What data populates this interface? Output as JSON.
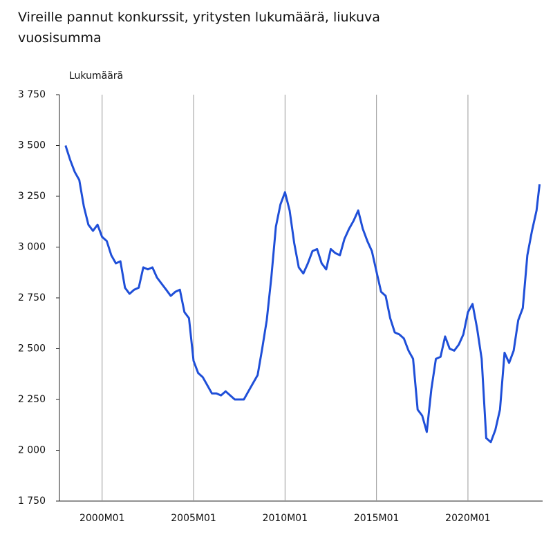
{
  "chart_data": {
    "type": "line",
    "title": "Vireille pannut konkurssit, yritysten lukumäärä, liukuva vuosisumma",
    "y_label": "Lukumäärä",
    "x": [
      "1998M01",
      "1998M04",
      "1998M07",
      "1998M10",
      "1999M01",
      "1999M04",
      "1999M07",
      "1999M10",
      "2000M01",
      "2000M04",
      "2000M07",
      "2000M10",
      "2001M01",
      "2001M04",
      "2001M07",
      "2001M10",
      "2002M01",
      "2002M04",
      "2002M07",
      "2002M10",
      "2003M01",
      "2003M04",
      "2003M07",
      "2003M10",
      "2004M01",
      "2004M04",
      "2004M07",
      "2004M10",
      "2005M01",
      "2005M04",
      "2005M07",
      "2005M10",
      "2006M01",
      "2006M04",
      "2006M07",
      "2006M10",
      "2007M01",
      "2007M04",
      "2007M07",
      "2007M10",
      "2008M01",
      "2008M04",
      "2008M07",
      "2008M10",
      "2009M01",
      "2009M04",
      "2009M07",
      "2009M10",
      "2010M01",
      "2010M04",
      "2010M07",
      "2010M10",
      "2011M01",
      "2011M04",
      "2011M07",
      "2011M10",
      "2012M01",
      "2012M04",
      "2012M07",
      "2012M10",
      "2013M01",
      "2013M04",
      "2013M07",
      "2013M10",
      "2014M01",
      "2014M04",
      "2014M07",
      "2014M10",
      "2015M01",
      "2015M04",
      "2015M07",
      "2015M10",
      "2016M01",
      "2016M04",
      "2016M07",
      "2016M10",
      "2017M01",
      "2017M04",
      "2017M07",
      "2017M10",
      "2018M01",
      "2018M04",
      "2018M07",
      "2018M10",
      "2019M01",
      "2019M04",
      "2019M07",
      "2019M10",
      "2020M01",
      "2020M04",
      "2020M07",
      "2020M10",
      "2021M01",
      "2021M04",
      "2021M07",
      "2021M10",
      "2022M01",
      "2022M04",
      "2022M07",
      "2022M10",
      "2023M01",
      "2023M04",
      "2023M07",
      "2023M10",
      "2023M12"
    ],
    "series": [
      {
        "name": "Konkurssit",
        "color": "#1f4fd8",
        "values": [
          3500,
          3430,
          3370,
          3330,
          3200,
          3110,
          3080,
          3110,
          3050,
          3030,
          2960,
          2920,
          2930,
          2800,
          2770,
          2790,
          2800,
          2900,
          2890,
          2900,
          2850,
          2820,
          2790,
          2760,
          2780,
          2790,
          2680,
          2650,
          2440,
          2380,
          2360,
          2320,
          2280,
          2280,
          2270,
          2290,
          2270,
          2250,
          2250,
          2250,
          2290,
          2330,
          2370,
          2500,
          2640,
          2850,
          3100,
          3210,
          3270,
          3180,
          3020,
          2900,
          2870,
          2920,
          2980,
          2990,
          2920,
          2890,
          2990,
          2970,
          2960,
          3040,
          3090,
          3130,
          3180,
          3090,
          3030,
          2980,
          2880,
          2780,
          2760,
          2650,
          2580,
          2570,
          2550,
          2490,
          2450,
          2200,
          2170,
          2090,
          2300,
          2450,
          2460,
          2560,
          2500,
          2490,
          2520,
          2570,
          2680,
          2720,
          2600,
          2450,
          2060,
          2040,
          2100,
          2200,
          2480,
          2430,
          2490,
          2640,
          2700,
          2960,
          3080,
          3180,
          3310
        ]
      }
    ],
    "xlim": [
      "1997M09",
      "2024M02"
    ],
    "xticks": [
      "2000M01",
      "2005M01",
      "2010M01",
      "2015M01",
      "2020M01"
    ],
    "ylim": [
      1750,
      3750
    ],
    "yticks": [
      {
        "value": 1750,
        "label": "1 750"
      },
      {
        "value": 2000,
        "label": "2 000"
      },
      {
        "value": 2250,
        "label": "2 250"
      },
      {
        "value": 2500,
        "label": "2 500"
      },
      {
        "value": 2750,
        "label": "2 750"
      },
      {
        "value": 3000,
        "label": "3 000"
      },
      {
        "value": 3250,
        "label": "3 250"
      },
      {
        "value": 3500,
        "label": "3 500"
      },
      {
        "value": 3750,
        "label": "3 750"
      }
    ],
    "grid": "x"
  }
}
